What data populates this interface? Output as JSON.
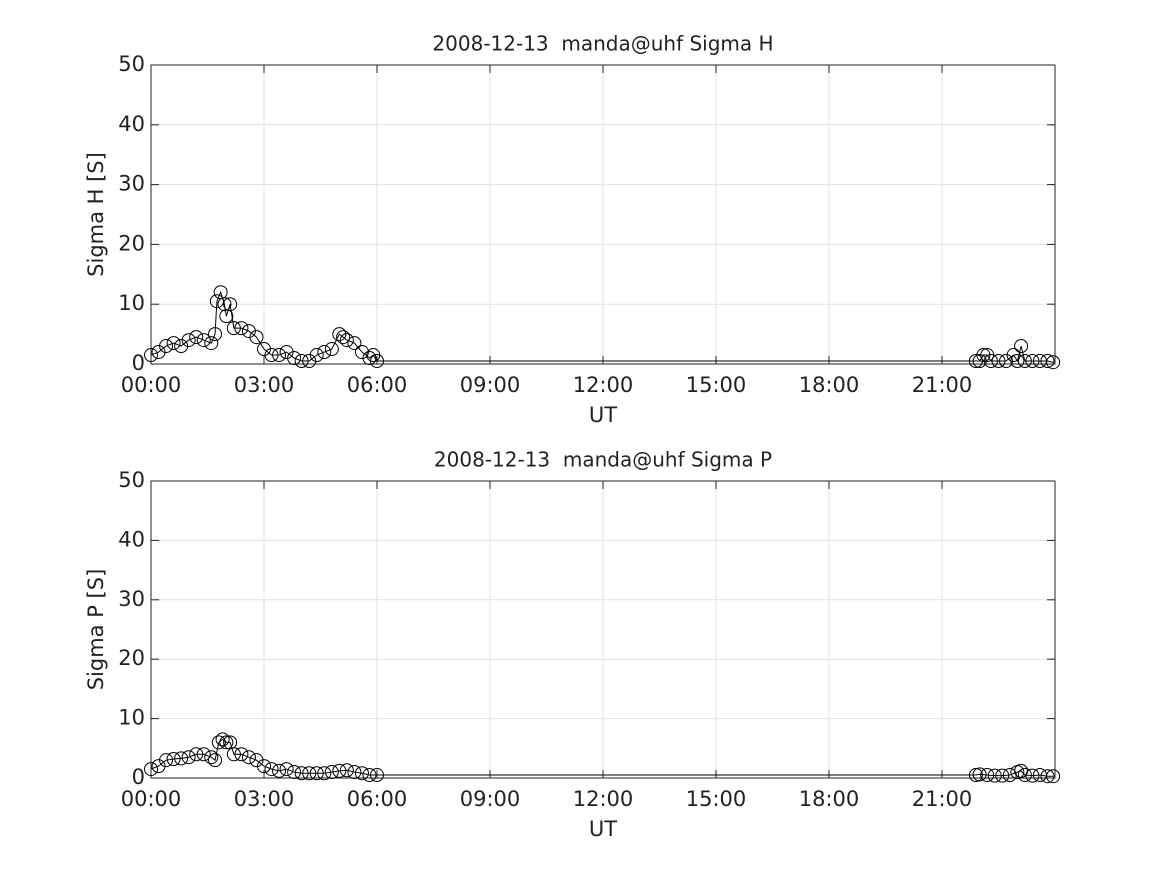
{
  "chart_data": [
    {
      "type": "line",
      "title": "2008-12-13  manda@uhf Sigma H",
      "x_label": "UT",
      "y_label": "Sigma H [S]",
      "xlim": [
        0,
        24
      ],
      "ylim": [
        0,
        50
      ],
      "grid": true,
      "color": "#000000",
      "marker": "circle",
      "xticks": [
        {
          "value": 0,
          "label": "00:00"
        },
        {
          "value": 3,
          "label": "03:00"
        },
        {
          "value": 6,
          "label": "06:00"
        },
        {
          "value": 9,
          "label": "09:00"
        },
        {
          "value": 12,
          "label": "12:00"
        },
        {
          "value": 15,
          "label": "15:00"
        },
        {
          "value": 18,
          "label": "18:00"
        },
        {
          "value": 21,
          "label": "21:00"
        }
      ],
      "yticks": [
        0,
        10,
        20,
        30,
        40,
        50
      ],
      "x": [
        0,
        0.2,
        0.4,
        0.6,
        0.8,
        1.0,
        1.2,
        1.4,
        1.6,
        1.7,
        1.75,
        1.85,
        1.95,
        2.0,
        2.1,
        2.2,
        2.4,
        2.6,
        2.8,
        3.0,
        3.2,
        3.4,
        3.6,
        3.8,
        4.0,
        4.2,
        4.4,
        4.6,
        4.8,
        5.0,
        5.1,
        5.2,
        5.4,
        5.6,
        5.8,
        5.9,
        6.0,
        21.9,
        22.0,
        22.1,
        22.2,
        22.3,
        22.5,
        22.7,
        22.9,
        23.0,
        23.1,
        23.2,
        23.4,
        23.6,
        23.8,
        23.95
      ],
      "values": [
        1.5,
        2,
        3,
        3.5,
        3,
        4,
        4.5,
        4,
        3.5,
        5,
        10.5,
        12,
        10,
        8,
        10,
        6,
        6,
        5.5,
        4.5,
        2.5,
        1.5,
        1.5,
        2,
        1,
        0.5,
        0.5,
        1.5,
        2,
        2.5,
        5,
        4.5,
        4,
        3.5,
        2,
        1,
        1.5,
        0.5,
        0.5,
        0.5,
        1.5,
        1.5,
        0.5,
        0.5,
        0.5,
        1.5,
        0.5,
        3,
        0.5,
        0.5,
        0.5,
        0.5,
        0.3
      ]
    },
    {
      "type": "line",
      "title": "2008-12-13  manda@uhf Sigma P",
      "x_label": "UT",
      "y_label": "Sigma P [S]",
      "xlim": [
        0,
        24
      ],
      "ylim": [
        0,
        50
      ],
      "grid": true,
      "color": "#000000",
      "marker": "circle",
      "xticks": [
        {
          "value": 0,
          "label": "00:00"
        },
        {
          "value": 3,
          "label": "03:00"
        },
        {
          "value": 6,
          "label": "06:00"
        },
        {
          "value": 9,
          "label": "09:00"
        },
        {
          "value": 12,
          "label": "12:00"
        },
        {
          "value": 15,
          "label": "15:00"
        },
        {
          "value": 18,
          "label": "18:00"
        },
        {
          "value": 21,
          "label": "21:00"
        }
      ],
      "yticks": [
        0,
        10,
        20,
        30,
        40,
        50
      ],
      "x": [
        0,
        0.2,
        0.4,
        0.6,
        0.8,
        1.0,
        1.2,
        1.4,
        1.6,
        1.7,
        1.8,
        1.9,
        2.0,
        2.1,
        2.2,
        2.4,
        2.6,
        2.8,
        3.0,
        3.2,
        3.4,
        3.6,
        3.8,
        4.0,
        4.2,
        4.4,
        4.6,
        4.8,
        5.0,
        5.2,
        5.4,
        5.6,
        5.8,
        6.0,
        21.9,
        22.0,
        22.2,
        22.4,
        22.6,
        22.8,
        23.0,
        23.1,
        23.2,
        23.4,
        23.6,
        23.8,
        23.95
      ],
      "values": [
        1.5,
        2,
        3,
        3.2,
        3.3,
        3.5,
        4,
        4,
        3.5,
        3,
        6,
        6.5,
        6,
        6,
        4,
        4,
        3.5,
        3,
        2,
        1.5,
        1.2,
        1.5,
        1,
        0.8,
        0.8,
        0.8,
        0.8,
        1,
        1.2,
        1.3,
        1,
        0.8,
        0.5,
        0.5,
        0.5,
        0.6,
        0.5,
        0.4,
        0.4,
        0.5,
        1,
        1.2,
        0.5,
        0.4,
        0.5,
        0.3,
        0.3
      ]
    }
  ]
}
